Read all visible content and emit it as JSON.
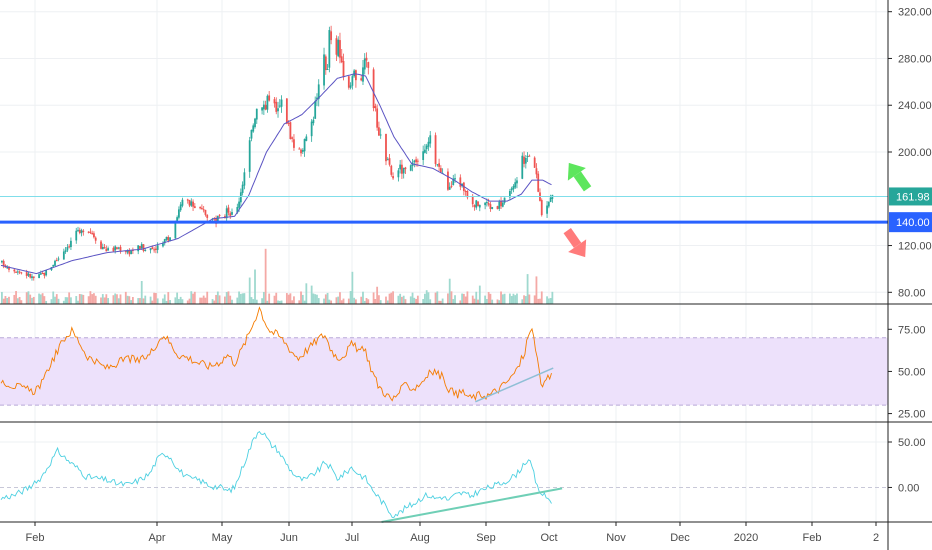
{
  "chart_data": [
    {
      "type": "candlestick",
      "panel": "price",
      "ylim": [
        70,
        330
      ],
      "yticks": [
        "320.00",
        "280.00",
        "240.00",
        "200.00",
        "120.00",
        "80.00"
      ],
      "ytick_values": [
        320,
        280,
        240,
        200,
        120,
        80
      ],
      "grid": true,
      "x_ticks": [
        "Feb",
        "Apr",
        "May",
        "Jun",
        "Jul",
        "Aug",
        "Sep",
        "Oct",
        "Nov",
        "Dec",
        "2020",
        "Feb",
        "2"
      ],
      "last_price_label": "161.98",
      "last_price": 161.98,
      "support_label": "140.00",
      "support": 140,
      "price_path": [
        [
          0,
          105
        ],
        [
          6,
          100
        ],
        [
          12,
          97
        ],
        [
          18,
          92
        ],
        [
          24,
          96
        ],
        [
          28,
          103
        ],
        [
          32,
          110
        ],
        [
          36,
          118
        ],
        [
          40,
          125
        ],
        [
          42,
          133
        ],
        [
          44,
          128
        ],
        [
          46,
          135
        ],
        [
          50,
          133
        ],
        [
          56,
          120
        ],
        [
          60,
          116
        ],
        [
          66,
          118
        ],
        [
          72,
          115
        ],
        [
          78,
          119
        ],
        [
          84,
          117
        ],
        [
          90,
          120
        ],
        [
          94,
          126
        ],
        [
          97,
          138
        ],
        [
          100,
          150
        ],
        [
          103,
          160
        ],
        [
          106,
          155
        ],
        [
          109,
          153
        ],
        [
          112,
          150
        ],
        [
          116,
          147
        ],
        [
          120,
          141
        ],
        [
          124,
          143
        ],
        [
          128,
          150
        ],
        [
          132,
          144
        ],
        [
          134,
          160
        ],
        [
          136,
          175
        ],
        [
          138,
          190
        ],
        [
          140,
          208
        ],
        [
          143,
          233
        ],
        [
          146,
          247
        ],
        [
          149,
          238
        ],
        [
          152,
          255
        ],
        [
          155,
          232
        ],
        [
          158,
          242
        ],
        [
          161,
          228
        ],
        [
          164,
          210
        ],
        [
          167,
          198
        ],
        [
          170,
          205
        ],
        [
          173,
          213
        ],
        [
          176,
          232
        ],
        [
          178,
          250
        ],
        [
          180,
          256
        ],
        [
          182,
          283
        ],
        [
          184,
          268
        ],
        [
          185,
          305
        ],
        [
          187,
          278
        ],
        [
          188,
          265
        ],
        [
          190,
          295
        ],
        [
          193,
          258
        ],
        [
          196,
          250
        ],
        [
          199,
          268
        ],
        [
          202,
          260
        ],
        [
          205,
          275
        ],
        [
          208,
          271
        ],
        [
          210,
          240
        ],
        [
          213,
          218
        ],
        [
          216,
          200
        ],
        [
          218,
          190
        ],
        [
          221,
          177
        ],
        [
          224,
          187
        ],
        [
          227,
          183
        ],
        [
          230,
          184
        ],
        [
          233,
          188
        ],
        [
          236,
          193
        ],
        [
          239,
          200
        ],
        [
          242,
          210
        ],
        [
          244,
          197
        ],
        [
          247,
          187
        ],
        [
          250,
          176
        ],
        [
          253,
          168
        ],
        [
          256,
          178
        ],
        [
          259,
          173
        ],
        [
          262,
          167
        ],
        [
          265,
          160
        ],
        [
          268,
          155
        ],
        [
          272,
          158
        ],
        [
          276,
          153
        ],
        [
          280,
          155
        ],
        [
          284,
          158
        ],
        [
          288,
          165
        ],
        [
          292,
          177
        ],
        [
          294,
          195
        ],
        [
          296,
          193
        ],
        [
          298,
          200
        ],
        [
          300,
          190
        ],
        [
          302,
          178
        ],
        [
          304,
          158
        ],
        [
          306,
          140
        ],
        [
          308,
          157
        ],
        [
          311,
          162
        ]
      ],
      "ma_path": [
        [
          0,
          103
        ],
        [
          20,
          96
        ],
        [
          40,
          107
        ],
        [
          60,
          114
        ],
        [
          80,
          117
        ],
        [
          100,
          126
        ],
        [
          120,
          143
        ],
        [
          132,
          145
        ],
        [
          140,
          163
        ],
        [
          150,
          200
        ],
        [
          160,
          224
        ],
        [
          170,
          232
        ],
        [
          180,
          247
        ],
        [
          190,
          263
        ],
        [
          200,
          267
        ],
        [
          206,
          265
        ],
        [
          214,
          240
        ],
        [
          222,
          213
        ],
        [
          232,
          190
        ],
        [
          244,
          186
        ],
        [
          256,
          176
        ],
        [
          266,
          166
        ],
        [
          276,
          158
        ],
        [
          286,
          158
        ],
        [
          294,
          164
        ],
        [
          300,
          176
        ],
        [
          306,
          176
        ],
        [
          311,
          172
        ]
      ]
    },
    {
      "type": "volume",
      "panel": "price",
      "note_spikes": [
        [
          79,
          20
        ],
        [
          90,
          17
        ],
        [
          110,
          22
        ],
        [
          140,
          23
        ],
        [
          143,
          30
        ],
        [
          149,
          48
        ],
        [
          152,
          25
        ],
        [
          172,
          18
        ],
        [
          175,
          16
        ],
        [
          198,
          28
        ],
        [
          212,
          15
        ],
        [
          240,
          12
        ],
        [
          253,
          22
        ],
        [
          270,
          16
        ],
        [
          297,
          26
        ],
        [
          299,
          42
        ],
        [
          302,
          24
        ]
      ]
    },
    {
      "type": "line",
      "panel": "rsi",
      "yticks": [
        "75.00",
        "50.00",
        "25.00"
      ],
      "ytick_values": [
        75,
        50,
        25
      ],
      "ylim": [
        20,
        90
      ],
      "band": [
        30,
        70
      ],
      "series_path": [
        [
          0,
          45
        ],
        [
          6,
          42
        ],
        [
          12,
          40
        ],
        [
          18,
          38
        ],
        [
          24,
          44
        ],
        [
          28,
          55
        ],
        [
          32,
          62
        ],
        [
          36,
          70
        ],
        [
          40,
          74
        ],
        [
          44,
          68
        ],
        [
          48,
          60
        ],
        [
          54,
          55
        ],
        [
          60,
          52
        ],
        [
          66,
          55
        ],
        [
          72,
          58
        ],
        [
          78,
          56
        ],
        [
          84,
          60
        ],
        [
          88,
          67
        ],
        [
          92,
          72
        ],
        [
          96,
          66
        ],
        [
          100,
          60
        ],
        [
          106,
          58
        ],
        [
          112,
          55
        ],
        [
          118,
          53
        ],
        [
          124,
          56
        ],
        [
          128,
          60
        ],
        [
          132,
          55
        ],
        [
          136,
          63
        ],
        [
          140,
          72
        ],
        [
          143,
          80
        ],
        [
          146,
          88
        ],
        [
          149,
          80
        ],
        [
          152,
          74
        ],
        [
          156,
          72
        ],
        [
          160,
          68
        ],
        [
          164,
          62
        ],
        [
          168,
          58
        ],
        [
          172,
          62
        ],
        [
          176,
          66
        ],
        [
          180,
          70
        ],
        [
          183,
          72
        ],
        [
          186,
          64
        ],
        [
          190,
          58
        ],
        [
          194,
          60
        ],
        [
          198,
          66
        ],
        [
          202,
          63
        ],
        [
          206,
          62
        ],
        [
          209,
          52
        ],
        [
          213,
          42
        ],
        [
          217,
          37
        ],
        [
          221,
          33
        ],
        [
          225,
          38
        ],
        [
          229,
          42
        ],
        [
          233,
          40
        ],
        [
          237,
          43
        ],
        [
          241,
          48
        ],
        [
          245,
          50
        ],
        [
          249,
          47
        ],
        [
          253,
          40
        ],
        [
          257,
          36
        ],
        [
          261,
          38
        ],
        [
          265,
          34
        ],
        [
          270,
          36
        ],
        [
          276,
          36
        ],
        [
          282,
          40
        ],
        [
          288,
          46
        ],
        [
          292,
          52
        ],
        [
          296,
          62
        ],
        [
          298,
          72
        ],
        [
          300,
          74
        ],
        [
          303,
          60
        ],
        [
          305,
          40
        ],
        [
          308,
          44
        ],
        [
          311,
          48
        ]
      ],
      "trend_line": [
        [
          268,
          32
        ],
        [
          312,
          52
        ]
      ]
    },
    {
      "type": "line",
      "panel": "oscillator",
      "yticks": [
        "50.00",
        "0.00"
      ],
      "ytick_values": [
        50,
        0
      ],
      "ylim": [
        -38,
        72
      ],
      "zero_line": true,
      "series_path": [
        [
          0,
          -12
        ],
        [
          8,
          -8
        ],
        [
          14,
          -2
        ],
        [
          20,
          5
        ],
        [
          24,
          15
        ],
        [
          28,
          28
        ],
        [
          32,
          40
        ],
        [
          36,
          33
        ],
        [
          40,
          26
        ],
        [
          44,
          20
        ],
        [
          48,
          12
        ],
        [
          54,
          10
        ],
        [
          60,
          8
        ],
        [
          66,
          4
        ],
        [
          72,
          3
        ],
        [
          78,
          8
        ],
        [
          84,
          15
        ],
        [
          88,
          30
        ],
        [
          92,
          38
        ],
        [
          96,
          33
        ],
        [
          100,
          20
        ],
        [
          106,
          10
        ],
        [
          112,
          8
        ],
        [
          118,
          2
        ],
        [
          124,
          0
        ],
        [
          128,
          -4
        ],
        [
          132,
          0
        ],
        [
          136,
          20
        ],
        [
          140,
          40
        ],
        [
          143,
          54
        ],
        [
          146,
          64
        ],
        [
          149,
          58
        ],
        [
          152,
          48
        ],
        [
          156,
          42
        ],
        [
          160,
          30
        ],
        [
          164,
          18
        ],
        [
          168,
          10
        ],
        [
          172,
          8
        ],
        [
          176,
          14
        ],
        [
          180,
          20
        ],
        [
          183,
          28
        ],
        [
          186,
          22
        ],
        [
          190,
          10
        ],
        [
          194,
          15
        ],
        [
          198,
          22
        ],
        [
          202,
          15
        ],
        [
          206,
          10
        ],
        [
          209,
          0
        ],
        [
          213,
          -10
        ],
        [
          217,
          -20
        ],
        [
          221,
          -30
        ],
        [
          225,
          -28
        ],
        [
          229,
          -22
        ],
        [
          233,
          -18
        ],
        [
          237,
          -12
        ],
        [
          241,
          -8
        ],
        [
          245,
          -12
        ],
        [
          249,
          -10
        ],
        [
          253,
          -14
        ],
        [
          257,
          -8
        ],
        [
          261,
          -6
        ],
        [
          265,
          -10
        ],
        [
          270,
          -4
        ],
        [
          276,
          0
        ],
        [
          282,
          4
        ],
        [
          288,
          10
        ],
        [
          292,
          16
        ],
        [
          296,
          28
        ],
        [
          298,
          30
        ],
        [
          300,
          22
        ],
        [
          303,
          0
        ],
        [
          306,
          -8
        ],
        [
          309,
          -12
        ],
        [
          311,
          -15
        ]
      ],
      "trend_line": [
        [
          215,
          -38
        ],
        [
          317,
          -1
        ]
      ]
    }
  ],
  "markers": {
    "up_arrow_color": "#5de65d",
    "down_arrow_color": "#ff7b7b"
  },
  "colors": {
    "up": "#26a69a",
    "down": "#ef5350",
    "ma": "#5b54c3",
    "rsi": "#f57c00",
    "rsi_band": "#ede1fb",
    "oscillator": "#4dd0e1",
    "trend": "#6fcfb6",
    "support_line": "#2962ff",
    "price_line": "#80deea",
    "last_price_badge": "#26a69a",
    "support_badge": "#2962ff"
  }
}
